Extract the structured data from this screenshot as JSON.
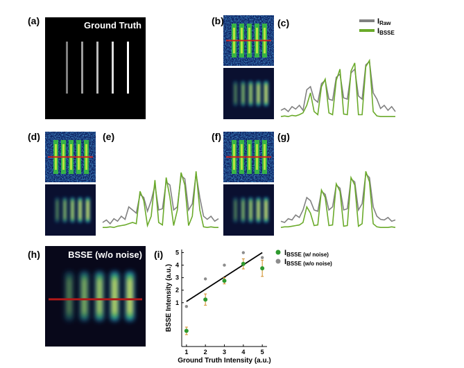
{
  "panel_labels": [
    "(a)",
    "(b)",
    "(c)",
    "(d)",
    "(e)",
    "(f)",
    "(g)",
    "(h)",
    "(i)"
  ],
  "image_titles": {
    "a": "Ground Truth",
    "h": "BSSE (w/o noise)"
  },
  "chart_data": [
    {
      "type": "line",
      "ylim": [
        0,
        1
      ],
      "series": [
        {
          "name": "I",
          "name_sub": "Raw",
          "color": "#808080",
          "values": [
            0.12,
            0.15,
            0.1,
            0.18,
            0.14,
            0.2,
            0.12,
            0.45,
            0.5,
            0.3,
            0.25,
            0.55,
            0.6,
            0.3,
            0.28,
            0.65,
            0.7,
            0.32,
            0.3,
            0.72,
            0.78,
            0.35,
            0.3,
            0.85,
            0.9,
            0.4,
            0.3,
            0.15,
            0.2,
            0.12,
            0.18,
            0.1
          ]
        },
        {
          "name": "I",
          "name_sub": "BSSE",
          "color": "#6aaa2a",
          "values": [
            0.02,
            0.03,
            0.02,
            0.04,
            0.03,
            0.05,
            0.08,
            0.2,
            0.4,
            0.1,
            0.05,
            0.5,
            0.62,
            0.08,
            0.05,
            0.6,
            0.78,
            0.06,
            0.05,
            0.75,
            0.88,
            0.05,
            0.05,
            0.82,
            0.92,
            0.1,
            0.03,
            0.02,
            0.02,
            0.02,
            0.02,
            0.02
          ]
        }
      ]
    },
    {
      "type": "line",
      "ylim": [
        0,
        1
      ],
      "series": [
        {
          "color": "#808080",
          "values": [
            0.1,
            0.14,
            0.08,
            0.16,
            0.12,
            0.2,
            0.15,
            0.35,
            0.3,
            0.25,
            0.55,
            0.5,
            0.28,
            0.45,
            0.7,
            0.3,
            0.32,
            0.75,
            0.7,
            0.3,
            0.35,
            0.85,
            0.8,
            0.3,
            0.4,
            0.88,
            0.5,
            0.2,
            0.15,
            0.2,
            0.12,
            0.16
          ]
        },
        {
          "color": "#6aaa2a",
          "values": [
            0.02,
            0.02,
            0.03,
            0.02,
            0.04,
            0.05,
            0.06,
            0.08,
            0.1,
            0.08,
            0.6,
            0.45,
            0.05,
            0.2,
            0.78,
            0.1,
            0.06,
            0.82,
            0.5,
            0.05,
            0.3,
            0.9,
            0.7,
            0.05,
            0.2,
            0.92,
            0.3,
            0.03,
            0.02,
            0.03,
            0.02,
            0.02
          ]
        }
      ]
    },
    {
      "type": "line",
      "ylim": [
        0,
        1
      ],
      "series": [
        {
          "color": "#808080",
          "values": [
            0.12,
            0.1,
            0.16,
            0.14,
            0.22,
            0.18,
            0.3,
            0.5,
            0.45,
            0.3,
            0.28,
            0.6,
            0.55,
            0.3,
            0.35,
            0.7,
            0.65,
            0.3,
            0.32,
            0.8,
            0.75,
            0.3,
            0.4,
            0.88,
            0.82,
            0.35,
            0.2,
            0.15,
            0.14,
            0.18,
            0.12,
            0.14
          ]
        },
        {
          "color": "#6aaa2a",
          "values": [
            0.02,
            0.03,
            0.03,
            0.04,
            0.05,
            0.06,
            0.1,
            0.35,
            0.25,
            0.05,
            0.06,
            0.62,
            0.5,
            0.05,
            0.06,
            0.72,
            0.6,
            0.04,
            0.05,
            0.82,
            0.7,
            0.04,
            0.08,
            0.92,
            0.75,
            0.08,
            0.03,
            0.02,
            0.02,
            0.02,
            0.03,
            0.02
          ]
        }
      ]
    },
    {
      "type": "scatter",
      "xlabel": "Ground Truth Intensity (a.u.)",
      "ylabel": "BSSE Intensity (a.u.)",
      "x": [
        1,
        2,
        3,
        4,
        5
      ],
      "xlim": [
        0.75,
        5.25
      ],
      "xticks": [
        1,
        2,
        3,
        4,
        5
      ],
      "ylim": [
        -2.5,
        5.25
      ],
      "yticks": [
        1,
        2,
        3,
        4,
        5
      ],
      "series": [
        {
          "name": "I",
          "name_sub": "BSSE (w/ noise)",
          "color": "#2e9a2e",
          "values": [
            -1.25,
            1.25,
            2.75,
            4.1,
            3.75
          ],
          "errors": [
            0.3,
            0.45,
            0.25,
            0.4,
            0.65
          ]
        },
        {
          "name": "I",
          "name_sub": "BSSE (w/o noise)",
          "color": "#8c8c8c",
          "values": [
            0.7,
            2.9,
            4.0,
            5.0,
            4.6
          ]
        }
      ],
      "fit": {
        "color": "#000000",
        "x": [
          1,
          5
        ],
        "values": [
          1.1,
          5.0
        ]
      }
    }
  ]
}
